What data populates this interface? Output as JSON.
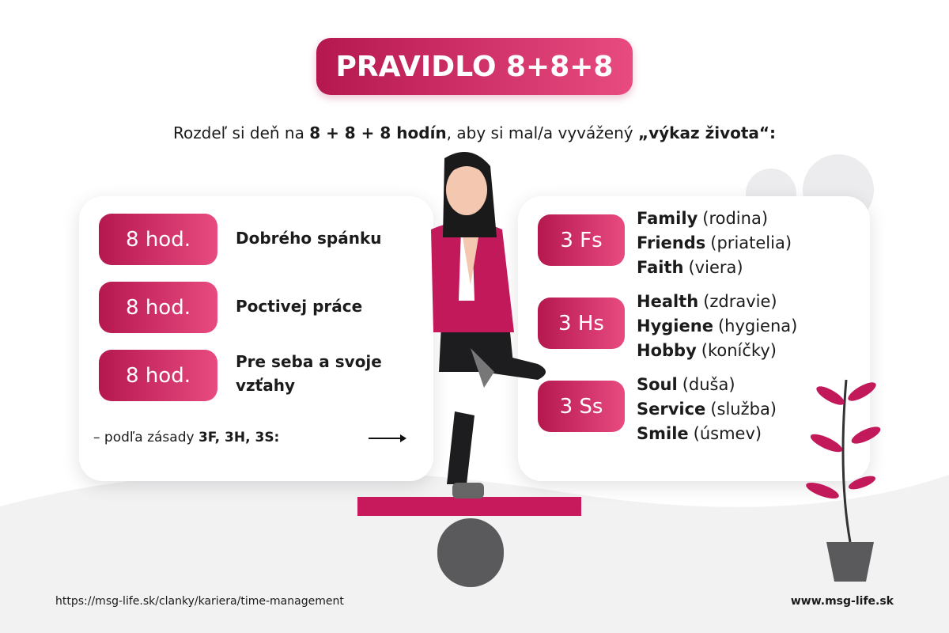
{
  "title": "PRAVIDLO 8+8+8",
  "intro": [
    {
      "text": "Rozdeľ si deň na ",
      "bold": false
    },
    {
      "text": "8 + 8 + 8 hodín",
      "bold": true
    },
    {
      "text": ", aby si mal/a vyvážený ",
      "bold": false
    },
    {
      "text": "„výkaz života“:",
      "bold": true
    }
  ],
  "left": {
    "items": [
      {
        "badge": "8 hod.",
        "text": "Dobrého spánku"
      },
      {
        "badge": "8 hod.",
        "text": "Poctivej práce"
      },
      {
        "badge": "8 hod.",
        "text": "Pre seba a svoje vzťahy"
      }
    ],
    "note": [
      {
        "text": "– podľa zásady ",
        "bold": false
      },
      {
        "text": "3F, 3H, 3S:",
        "bold": true
      }
    ]
  },
  "right": {
    "groups": [
      {
        "badge": "3 Fs",
        "items": [
          {
            "name": "Family",
            "meaning": "(rodina)"
          },
          {
            "name": "Friends",
            "meaning": "(priatelia)"
          },
          {
            "name": "Faith",
            "meaning": "(viera)"
          }
        ]
      },
      {
        "badge": "3 Hs",
        "items": [
          {
            "name": "Health",
            "meaning": "(zdravie)"
          },
          {
            "name": "Hygiene",
            "meaning": "(hygiena)"
          },
          {
            "name": "Hobby",
            "meaning": "(koníčky)"
          }
        ]
      },
      {
        "badge": "3 Ss",
        "items": [
          {
            "name": "Soul",
            "meaning": "(duša)"
          },
          {
            "name": "Service",
            "meaning": "(služba)"
          },
          {
            "name": "Smile",
            "meaning": "(úsmev)"
          }
        ]
      }
    ]
  },
  "footer": {
    "url": "https://msg-life.sk/clanky/kariera/time-management",
    "site": "www.msg-life.sk"
  }
}
